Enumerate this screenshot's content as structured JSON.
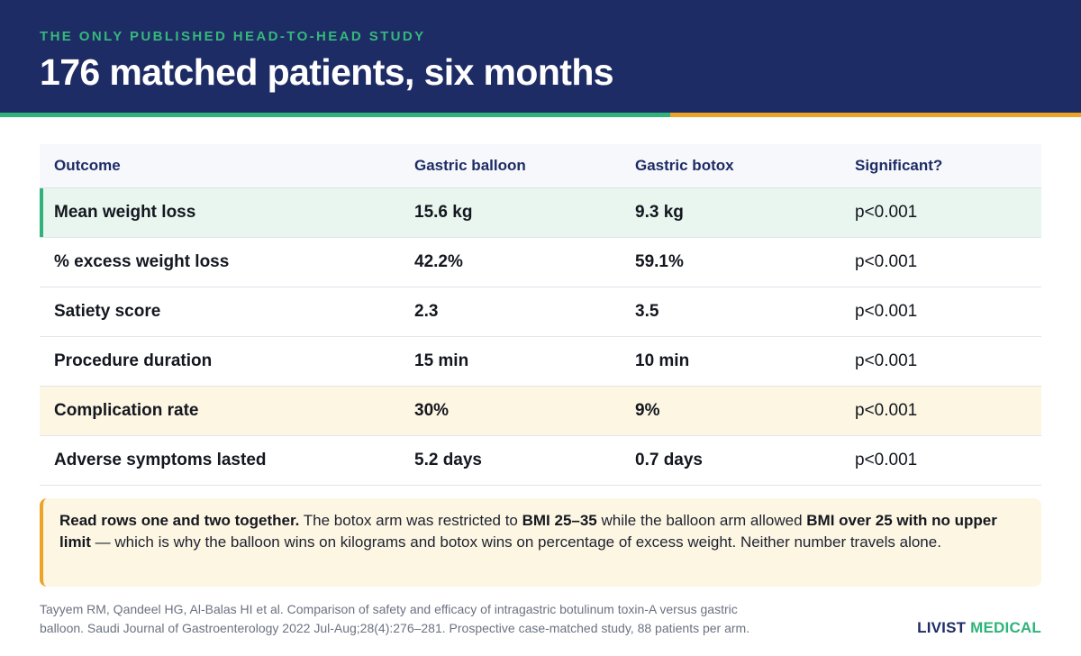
{
  "header": {
    "kicker": "THE ONLY PUBLISHED HEAD-TO-HEAD STUDY",
    "title": "176 matched patients, six months"
  },
  "colors": {
    "navy": "#1e2c66",
    "green": "#2fb37a",
    "orange": "#eda228",
    "highlight_green_bg": "#e8f6ef",
    "highlight_amber_bg": "#fdf6e3"
  },
  "table": {
    "columns": [
      "Outcome",
      "Gastric balloon",
      "Gastric botox",
      "Significant?"
    ],
    "rows": [
      {
        "outcome": "Mean weight loss",
        "balloon": "15.6 kg",
        "botox": "9.3 kg",
        "significance": "p<0.001",
        "highlight": "green"
      },
      {
        "outcome": "% excess weight loss",
        "balloon": "42.2%",
        "botox": "59.1%",
        "significance": "p<0.001",
        "highlight": "none"
      },
      {
        "outcome": "Satiety score",
        "balloon": "2.3",
        "botox": "3.5",
        "significance": "p<0.001",
        "highlight": "none"
      },
      {
        "outcome": "Procedure duration",
        "balloon": "15 min",
        "botox": "10 min",
        "significance": "p<0.001",
        "highlight": "none"
      },
      {
        "outcome": "Complication rate",
        "balloon": "30%",
        "botox": "9%",
        "significance": "p<0.001",
        "highlight": "amber"
      },
      {
        "outcome": "Adverse symptoms lasted",
        "balloon": "5.2 days",
        "botox": "0.7 days",
        "significance": "p<0.001",
        "highlight": "none"
      }
    ]
  },
  "callout": {
    "lead": "Read rows one and two together.",
    "t1": " The botox arm was restricted to ",
    "b1": "BMI 25–35",
    "t2": " while the balloon arm allowed ",
    "b2": "BMI over 25 with no upper limit",
    "t3": " — which is why the balloon wins on kilograms and botox wins on percentage of excess weight. Neither number travels alone."
  },
  "citation": {
    "line1": "Tayyem RM, Qandeel HG, Al-Balas HI et al. Comparison of safety and efficacy of intragastric botulinum toxin-A versus gastric",
    "line2": "balloon. Saudi Journal of Gastroenterology 2022 Jul-Aug;28(4):276–281. Prospective case-matched study, 88 patients per arm."
  },
  "logo": {
    "part1": "LIVIST",
    "part2": "MEDICAL"
  }
}
